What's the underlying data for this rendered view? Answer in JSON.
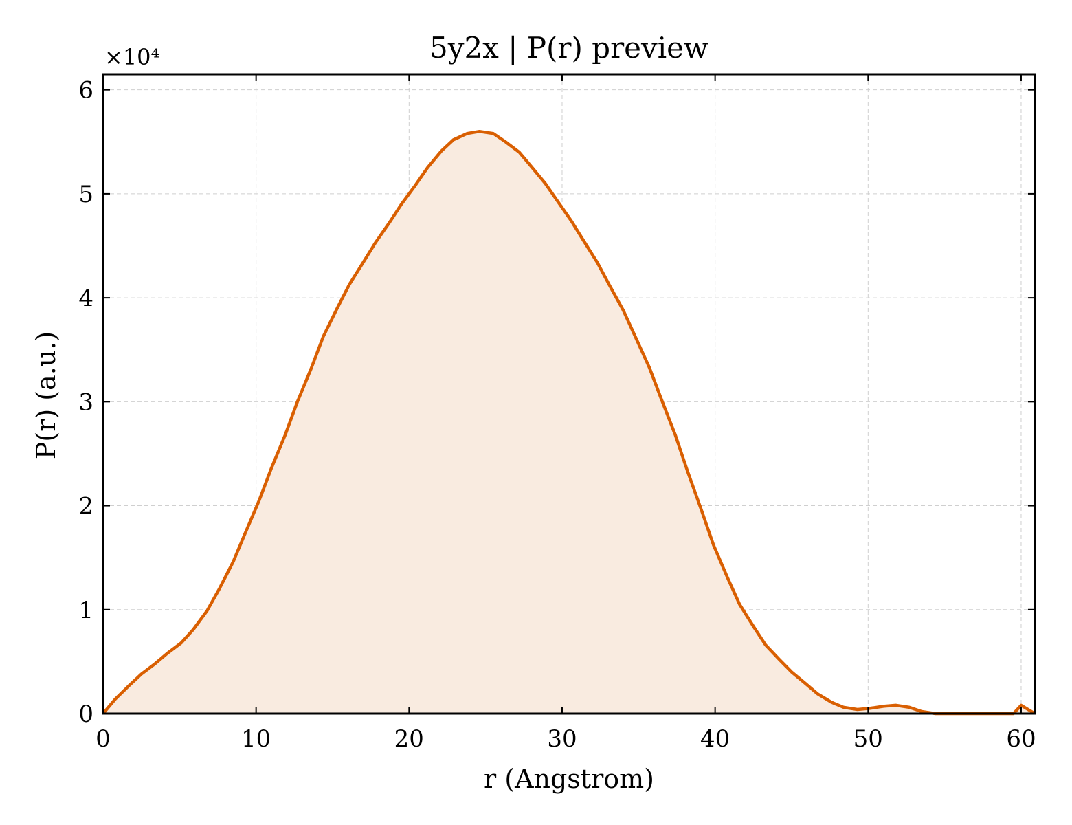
{
  "chart_data": {
    "type": "area",
    "title": "5y2x | P(r) preview",
    "xlabel": "r (Angstrom)",
    "ylabel": "P(r) (a.u.)",
    "y_multiplier": "×10⁴",
    "xlim": [
      0,
      60.9
    ],
    "ylim": [
      0,
      6.15
    ],
    "xticks": [
      0,
      10,
      20,
      30,
      40,
      50,
      60
    ],
    "yticks": [
      0,
      1,
      2,
      3,
      4,
      5,
      6
    ],
    "grid": true,
    "colors": {
      "line": "#d95f02",
      "fill": "#f9ebe0"
    },
    "series": [
      {
        "x": [
          0,
          0.8,
          1.7,
          2.5,
          3.4,
          4.2,
          5.1,
          5.9,
          6.8,
          7.6,
          8.5,
          9.3,
          10.2,
          11.0,
          11.9,
          12.7,
          13.6,
          14.4,
          15.3,
          16.1,
          17.0,
          17.8,
          18.7,
          19.5,
          20.4,
          21.2,
          22.1,
          22.9,
          23.8,
          24.6,
          25.5,
          26.3,
          27.2,
          28.0,
          28.9,
          29.7,
          30.6,
          31.4,
          32.3,
          33.1,
          34.0,
          34.8,
          35.7,
          36.5,
          37.4,
          38.2,
          39.1,
          39.9,
          40.8,
          41.6,
          42.5,
          43.3,
          44.2,
          45.0,
          45.9,
          46.7,
          47.6,
          48.4,
          49.3,
          50.1,
          51.0,
          51.8,
          52.7,
          53.5,
          54.4,
          55.2,
          56.1,
          56.9,
          57.8,
          58.6,
          59.5,
          60.0,
          60.9
        ],
        "values": [
          0,
          0.14,
          0.27,
          0.38,
          0.48,
          0.58,
          0.68,
          0.81,
          0.99,
          1.2,
          1.46,
          1.74,
          2.05,
          2.36,
          2.68,
          3.0,
          3.32,
          3.63,
          3.9,
          4.13,
          4.34,
          4.53,
          4.72,
          4.9,
          5.08,
          5.25,
          5.41,
          5.52,
          5.58,
          5.6,
          5.58,
          5.5,
          5.4,
          5.26,
          5.1,
          4.93,
          4.74,
          4.55,
          4.34,
          4.12,
          3.88,
          3.62,
          3.33,
          3.02,
          2.68,
          2.33,
          1.96,
          1.62,
          1.31,
          1.05,
          0.84,
          0.66,
          0.52,
          0.4,
          0.29,
          0.19,
          0.11,
          0.06,
          0.04,
          0.05,
          0.07,
          0.08,
          0.06,
          0.02,
          0.0,
          0.0,
          0.0,
          0.0,
          0.0,
          0.0,
          0.0,
          0.08,
          0.0
        ]
      }
    ]
  }
}
